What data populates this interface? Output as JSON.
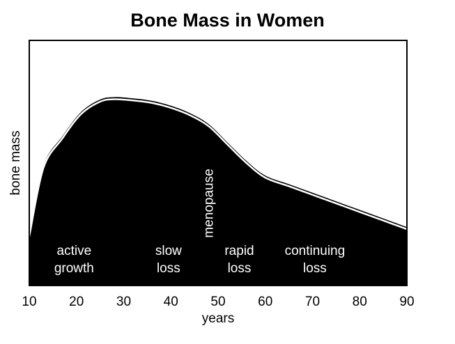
{
  "chart_data": {
    "type": "area",
    "title": "Bone Mass in Women",
    "xlabel": "years",
    "ylabel": "bone mass",
    "xlim": [
      10,
      90
    ],
    "ylim": [
      0,
      100
    ],
    "xticks": [
      "10",
      "20",
      "30",
      "40",
      "50",
      "60",
      "70",
      "80",
      "90"
    ],
    "grid": false,
    "legend": "none",
    "series": [
      {
        "x": [
          10,
          13,
          17,
          21,
          25,
          28,
          32,
          36,
          40,
          44,
          48,
          52,
          56,
          60,
          65,
          70,
          75,
          80,
          85,
          90
        ],
        "values": [
          20,
          48,
          60,
          70,
          75,
          76,
          75.5,
          74.5,
          72.5,
          69.5,
          65,
          57.5,
          50,
          44,
          40.5,
          37,
          33.5,
          30,
          26.5,
          23
        ]
      }
    ],
    "annotations": [
      {
        "lines": [
          "active",
          "growth"
        ],
        "x": 19.5
      },
      {
        "lines": [
          "slow",
          "loss"
        ],
        "x": 39.5
      },
      {
        "lines": [
          "menopause"
        ],
        "x": 48,
        "rotated": true
      },
      {
        "lines": [
          "rapid",
          "loss"
        ],
        "x": 54.5
      },
      {
        "lines": [
          "continuing",
          "loss"
        ],
        "x": 70.5
      }
    ],
    "colors": {
      "fill": "#000000",
      "line": "#ffffff",
      "background": "#ffffff"
    }
  }
}
